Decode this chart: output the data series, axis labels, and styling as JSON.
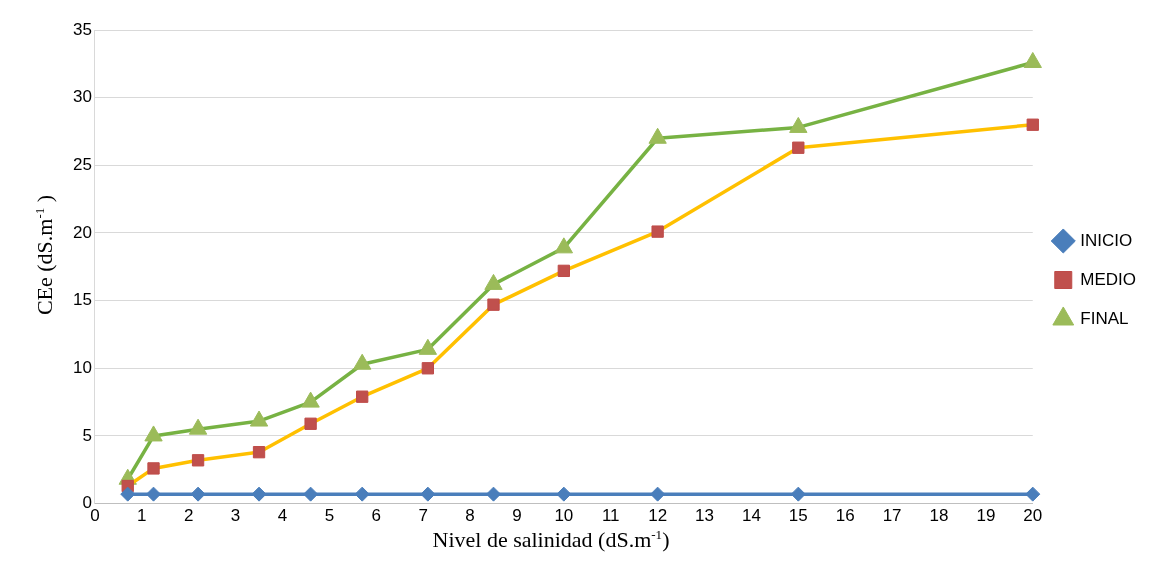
{
  "chart_data": {
    "type": "line",
    "xlabel": "Nivel de salinidad (dS.m$^{-1}$)",
    "ylabel": "CEe (dS.m$^{-1}$ )",
    "x": [
      0.7,
      1.25,
      2.2,
      3.5,
      4.6,
      5.7,
      7.1,
      8.5,
      10,
      12,
      15,
      20
    ],
    "xlim": [
      0,
      20
    ],
    "xticks": [
      0,
      1,
      2,
      3,
      4,
      5,
      6,
      7,
      8,
      9,
      10,
      11,
      12,
      13,
      14,
      15,
      16,
      17,
      18,
      19,
      20
    ],
    "ylim": [
      0,
      35
    ],
    "yticks": [
      0,
      5,
      10,
      15,
      20,
      25,
      30,
      35
    ],
    "grid": "y",
    "legend": "right",
    "series": [
      {
        "name": "INICIO",
        "color": "#4a7ebb",
        "marker": "diamond",
        "values": [
          0.7,
          0.7,
          0.7,
          0.7,
          0.7,
          0.7,
          0.7,
          0.7,
          0.7,
          0.7,
          0.7,
          0.7
        ]
      },
      {
        "name": "MEDIO",
        "color": "#ffc000",
        "marker": "square",
        "values": [
          1.3,
          2.6,
          3.2,
          3.8,
          5.9,
          7.9,
          10.0,
          14.7,
          17.2,
          20.1,
          26.3,
          28.0
        ]
      },
      {
        "name": "FINAL",
        "color": "#77b243",
        "marker": "triangle",
        "values": [
          1.8,
          5.0,
          5.5,
          6.1,
          7.5,
          10.3,
          11.4,
          16.2,
          18.9,
          27.0,
          27.8,
          32.6
        ]
      }
    ]
  }
}
